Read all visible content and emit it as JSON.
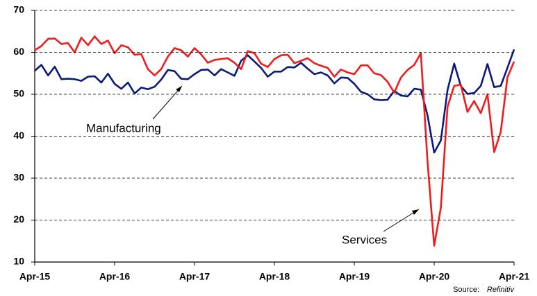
{
  "chart_data": {
    "type": "line",
    "categories": [
      "Apr-15",
      null,
      null,
      null,
      null,
      null,
      null,
      null,
      null,
      null,
      null,
      null,
      "Apr-16",
      null,
      null,
      null,
      null,
      null,
      null,
      null,
      null,
      null,
      null,
      null,
      "Apr-17",
      null,
      null,
      null,
      null,
      null,
      null,
      null,
      null,
      null,
      null,
      null,
      "Apr-18",
      null,
      null,
      null,
      null,
      null,
      null,
      null,
      null,
      null,
      null,
      null,
      "Apr-19",
      null,
      null,
      null,
      null,
      null,
      null,
      null,
      null,
      null,
      null,
      null,
      "Apr-20",
      null,
      null,
      null,
      null,
      null,
      null,
      null,
      null,
      null,
      null,
      null,
      "Apr-21"
    ],
    "series": [
      {
        "name": "Manufacturing",
        "color": "#0a1a7a",
        "values": [
          55.6,
          57.0,
          54.5,
          56.6,
          53.6,
          53.7,
          53.6,
          53.2,
          54.2,
          54.3,
          52.8,
          54.9,
          52.5,
          51.3,
          52.8,
          50.2,
          51.6,
          51.2,
          51.8,
          53.5,
          55.8,
          55.5,
          53.7,
          53.6,
          54.8,
          55.8,
          55.9,
          54.5,
          56.0,
          55.2,
          54.4,
          58.0,
          59.3,
          57.8,
          56.3,
          54.2,
          55.4,
          55.4,
          56.5,
          56.4,
          57.5,
          56.1,
          54.8,
          55.2,
          54.5,
          52.6,
          54.0,
          53.9,
          52.5,
          50.6,
          50.0,
          48.8,
          48.6,
          48.7,
          50.8,
          49.7,
          49.5,
          51.3,
          51.1,
          45.0,
          36.1,
          39.0,
          51.0,
          57.3,
          52.0,
          50.1,
          50.3,
          52.0,
          57.2,
          51.7,
          52.0,
          56.3,
          60.7
        ]
      },
      {
        "name": "Services",
        "color": "#ee1c1c",
        "values": [
          60.5,
          61.5,
          63.2,
          63.3,
          62.0,
          62.2,
          60.0,
          63.5,
          61.7,
          63.8,
          62.0,
          62.8,
          59.8,
          61.7,
          61.2,
          59.4,
          59.6,
          56.0,
          54.5,
          56.0,
          59.0,
          61.0,
          60.5,
          59.0,
          61.0,
          59.5,
          57.5,
          58.2,
          58.4,
          58.6,
          57.5,
          56.0,
          60.3,
          59.8,
          57.3,
          56.5,
          58.4,
          59.3,
          59.4,
          57.4,
          58.0,
          58.6,
          57.4,
          56.8,
          56.3,
          54.2,
          55.9,
          55.2,
          54.8,
          56.9,
          56.9,
          55.0,
          54.6,
          53.0,
          50.4,
          54.0,
          55.8,
          57.0,
          59.8,
          34.0,
          13.9,
          23.0,
          47.0,
          52.0,
          52.3,
          45.8,
          48.4,
          45.5,
          50.0,
          36.2,
          41.0,
          54.0,
          57.8
        ]
      }
    ],
    "ylim": [
      10,
      70
    ],
    "yticks": [
      10,
      20,
      30,
      40,
      50,
      60,
      70
    ],
    "grid": true,
    "source_label": "Source:",
    "source": "Refinitiv"
  }
}
